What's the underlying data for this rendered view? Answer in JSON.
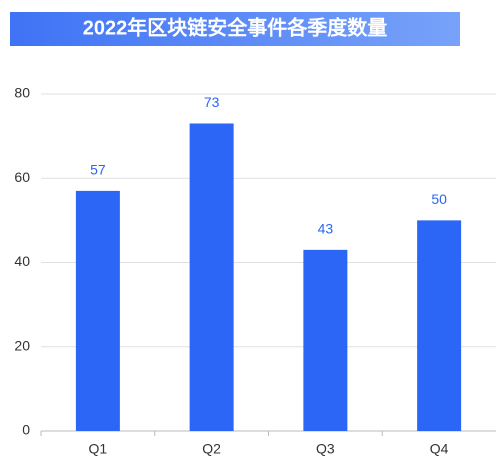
{
  "chart_data": {
    "type": "bar",
    "title": "2022年区块链安全事件各季度数量",
    "categories": [
      "Q1",
      "Q2",
      "Q3",
      "Q4"
    ],
    "values": [
      57,
      73,
      43,
      50
    ],
    "color": "#2b66f6",
    "ylim": [
      0,
      80
    ],
    "yticks": [
      0,
      20,
      40,
      60,
      80
    ],
    "grid": true
  }
}
